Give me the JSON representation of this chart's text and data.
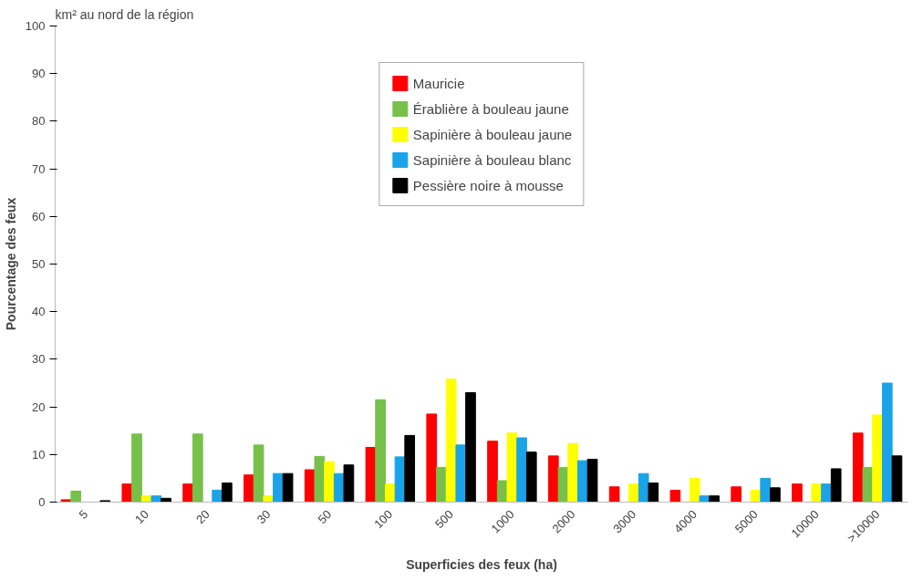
{
  "chart_data": {
    "type": "bar",
    "annotations": [
      "km² au nord de la région"
    ],
    "xlabel": "Superficies des feux (ha)",
    "ylabel": "Pourcentage des feux",
    "categories": [
      "5",
      "10",
      "20",
      "30",
      "50",
      "100",
      "500",
      "1000",
      "2000",
      "3000",
      "4000",
      "5000",
      "10000",
      ">10000"
    ],
    "series": [
      {
        "name": "Mauricie",
        "color": "#ff0000",
        "values": [
          0.5,
          3.8,
          3.8,
          5.7,
          6.8,
          11.5,
          18.5,
          12.8,
          9.7,
          3.2,
          2.5,
          3.2,
          3.8,
          14.5
        ]
      },
      {
        "name": "Érablière à bouleau jaune",
        "color": "#77c04a",
        "values": [
          2.3,
          14.3,
          14.3,
          12,
          9.6,
          21.5,
          7.3,
          4.5,
          7.3,
          0,
          0,
          0,
          0,
          7.3
        ]
      },
      {
        "name": "Sapinière à bouleau jaune",
        "color": "#ffff00",
        "values": [
          0,
          1.3,
          0,
          1.3,
          8.5,
          3.8,
          25.8,
          14.5,
          12.3,
          3.8,
          5,
          2.5,
          3.8,
          18.3
        ]
      },
      {
        "name": "Sapinière à bouleau blanc",
        "color": "#1aa3e8",
        "values": [
          0,
          1.3,
          2.5,
          6,
          6,
          9.5,
          12,
          13.5,
          8.7,
          6,
          1.3,
          5,
          3.8,
          25
        ]
      },
      {
        "name": "Pessière noire à mousse",
        "color": "#000000",
        "values": [
          0.3,
          0.8,
          4,
          6,
          7.8,
          14,
          23,
          10.5,
          9,
          4,
          1.3,
          3,
          7,
          9.7
        ]
      }
    ],
    "ylim": [
      0,
      100
    ],
    "yticks": [
      0,
      10,
      20,
      30,
      40,
      50,
      60,
      70,
      80,
      90,
      100
    ],
    "grid": false,
    "legend": "top"
  }
}
